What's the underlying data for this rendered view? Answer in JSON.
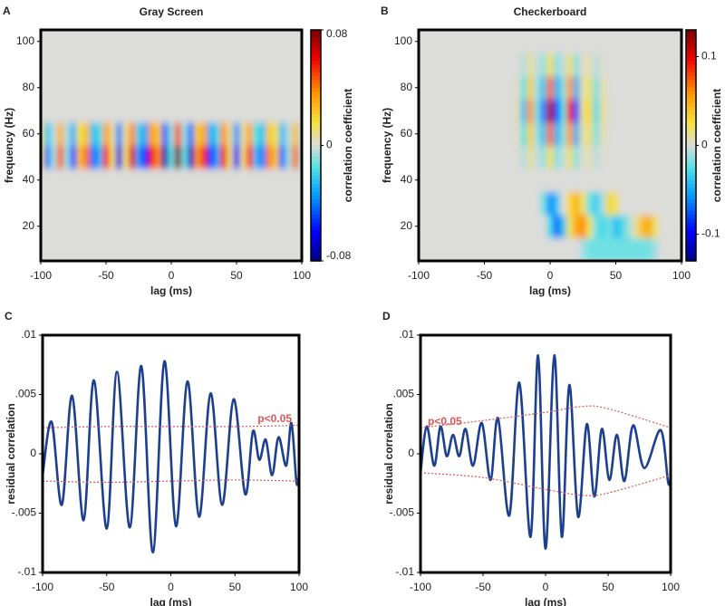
{
  "chart_data": [
    {
      "type": "heatmap",
      "panel_label": "A",
      "title": "Gray Screen",
      "xlabel": "lag (ms)",
      "ylabel": "frequency (Hz)",
      "x": [
        -100,
        -95,
        -90,
        -85,
        -80,
        -75,
        -70,
        -65,
        -60,
        -55,
        -50,
        -45,
        -40,
        -35,
        -30,
        -25,
        -20,
        -15,
        -10,
        -5,
        0,
        5,
        10,
        15,
        20,
        25,
        30,
        35,
        40,
        45,
        50,
        55,
        60,
        65,
        70,
        75,
        80,
        85,
        90,
        95,
        100
      ],
      "y": [
        10,
        20,
        30,
        40,
        50,
        60,
        70,
        80,
        90,
        100
      ],
      "z": [
        [
          0,
          0,
          0,
          0,
          0,
          0,
          0,
          0,
          0,
          0,
          0,
          0,
          0,
          0,
          0,
          0,
          0,
          0,
          0,
          0,
          0,
          0,
          0,
          0,
          0,
          0,
          0,
          0,
          0,
          0,
          0,
          0,
          0,
          0,
          0,
          0,
          0,
          0,
          0,
          0,
          0
        ],
        [
          0,
          0,
          0,
          0,
          0,
          0,
          0,
          0,
          0,
          0,
          0,
          0,
          0,
          0,
          0,
          0,
          0,
          0,
          0,
          0,
          0,
          0,
          0,
          0,
          0,
          0,
          0,
          0,
          0,
          0,
          0,
          0,
          0,
          0,
          0,
          0,
          0,
          0,
          0,
          0,
          0
        ],
        [
          0,
          0,
          0,
          0,
          0,
          0,
          0,
          0,
          0,
          0,
          0,
          0,
          0,
          0,
          0,
          0,
          0,
          0,
          0,
          0,
          0,
          0,
          0,
          0,
          0,
          0,
          0,
          0,
          0,
          0,
          0,
          0,
          0,
          0,
          0,
          0,
          0,
          0,
          0,
          0,
          0
        ],
        [
          0,
          0,
          0,
          0,
          0,
          0,
          0,
          0,
          0,
          0,
          0,
          0,
          0,
          0,
          0,
          0,
          0,
          0,
          0,
          0,
          0,
          0,
          0,
          0,
          0,
          0,
          0,
          0,
          0,
          0,
          0,
          0,
          0,
          0,
          0,
          0,
          0,
          0,
          0,
          0,
          0
        ],
        [
          0.02,
          -0.039,
          -0.007,
          0.046,
          -0.008,
          -0.047,
          0.026,
          0.042,
          -0.043,
          -0.029,
          0.056,
          0.011,
          -0.064,
          0.011,
          0.064,
          -0.035,
          -0.055,
          0.057,
          0.038,
          -0.073,
          -0.014,
          0.078,
          -0.013,
          -0.07,
          0.036,
          0.054,
          -0.052,
          -0.033,
          0.06,
          0.011,
          -0.06,
          0.01,
          0.053,
          -0.027,
          -0.04,
          0.039,
          0.024,
          -0.043,
          -0.007,
          0.042,
          -0.007
        ],
        [
          0.012,
          -0.023,
          -0.004,
          0.028,
          -0.005,
          -0.028,
          0.016,
          0.025,
          -0.026,
          -0.017,
          0.034,
          0.007,
          -0.038,
          0.007,
          0.038,
          -0.021,
          -0.033,
          0.034,
          0.023,
          -0.044,
          -0.008,
          0.047,
          -0.008,
          -0.042,
          0.022,
          0.032,
          -0.031,
          -0.02,
          0.036,
          0.007,
          -0.036,
          0.006,
          0.032,
          -0.016,
          -0.024,
          0.023,
          0.014,
          -0.026,
          -0.004,
          0.025,
          -0.004
        ],
        [
          0,
          0,
          0,
          0,
          0,
          0,
          0,
          0,
          0,
          0,
          0,
          0,
          0,
          0,
          0,
          0,
          0,
          0,
          0,
          0,
          0,
          0,
          0,
          0,
          0,
          0,
          0,
          0,
          0,
          0,
          0,
          0,
          0,
          0,
          0,
          0,
          0,
          0,
          0,
          0,
          0
        ],
        [
          0,
          0,
          0,
          0,
          0,
          0,
          0,
          0,
          0,
          0,
          0,
          0,
          0,
          0,
          0,
          0,
          0,
          0,
          0,
          0,
          0,
          0,
          0,
          0,
          0,
          0,
          0,
          0,
          0,
          0,
          0,
          0,
          0,
          0,
          0,
          0,
          0,
          0,
          0,
          0,
          0
        ],
        [
          0,
          0,
          0,
          0,
          0,
          0,
          0,
          0,
          0,
          0,
          0,
          0,
          0,
          0,
          0,
          0,
          0,
          0,
          0,
          0,
          0,
          0,
          0,
          0,
          0,
          0,
          0,
          0,
          0,
          0,
          0,
          0,
          0,
          0,
          0,
          0,
          0,
          0,
          0,
          0,
          0
        ],
        [
          0,
          0,
          0,
          0,
          0,
          0,
          0,
          0,
          0,
          0,
          0,
          0,
          0,
          0,
          0,
          0,
          0,
          0,
          0,
          0,
          0,
          0,
          0,
          0,
          0,
          0,
          0,
          0,
          0,
          0,
          0,
          0,
          0,
          0,
          0,
          0,
          0,
          0,
          0,
          0,
          0
        ]
      ],
      "xlim": [
        -100,
        100
      ],
      "ylim": [
        5,
        105
      ],
      "xticks": [
        -100,
        -50,
        0,
        50,
        100
      ],
      "yticks": [
        20,
        40,
        60,
        80,
        100
      ],
      "colorbar": {
        "label": "correlation coefficient",
        "lim": [
          -0.08,
          0.08
        ],
        "ticks": [
          0.08,
          0,
          -0.08
        ]
      }
    },
    {
      "type": "heatmap",
      "panel_label": "B",
      "title": "Checkerboard",
      "xlabel": "lag (ms)",
      "ylabel": "frequency (Hz)",
      "x": [
        -100,
        -95,
        -90,
        -85,
        -80,
        -75,
        -70,
        -65,
        -60,
        -55,
        -50,
        -45,
        -40,
        -35,
        -30,
        -25,
        -20,
        -15,
        -10,
        -5,
        0,
        5,
        10,
        15,
        20,
        25,
        30,
        35,
        40,
        45,
        50,
        55,
        60,
        65,
        70,
        75,
        80,
        85,
        90,
        95,
        100
      ],
      "y": [
        10,
        20,
        30,
        40,
        50,
        60,
        70,
        80,
        90,
        100
      ],
      "z": [
        [
          0,
          0,
          0,
          0,
          0,
          0,
          0,
          0,
          0,
          0,
          0,
          0,
          0,
          0,
          0,
          0,
          0,
          0,
          0,
          0,
          0,
          0,
          0,
          0,
          0,
          -0.01,
          -0.02,
          -0.02,
          -0.02,
          -0.02,
          -0.02,
          -0.02,
          -0.02,
          -0.02,
          -0.02,
          -0.02,
          -0.01,
          0,
          0,
          0,
          0
        ],
        [
          0,
          0,
          0,
          0,
          0,
          0,
          0,
          0,
          0,
          0,
          0,
          0,
          0,
          0,
          0,
          0,
          0,
          0,
          0,
          0,
          -0.03,
          -0.07,
          -0.04,
          0.02,
          0.05,
          0.06,
          0.02,
          -0.02,
          -0.03,
          -0.02,
          -0.04,
          -0.03,
          -0.01,
          0.01,
          0.04,
          0.05,
          0.02,
          0,
          0,
          0,
          0
        ],
        [
          0,
          0,
          0,
          0,
          0,
          0,
          0,
          0,
          0,
          0,
          0,
          0,
          0,
          0,
          0,
          0,
          0,
          0,
          0,
          -0.02,
          -0.06,
          -0.04,
          0,
          0.03,
          0.045,
          0.02,
          -0.02,
          -0.035,
          -0.01,
          0.03,
          0.02,
          0,
          0,
          0,
          0,
          0,
          0,
          0,
          0,
          0,
          0
        ],
        [
          0,
          0,
          0,
          0,
          0,
          0,
          0,
          0,
          0,
          0,
          0,
          0,
          0,
          0,
          0,
          0,
          0,
          0,
          0,
          0,
          0,
          0,
          0,
          0,
          0,
          0,
          0,
          0,
          0,
          0,
          0,
          0,
          0,
          0,
          0,
          0,
          0,
          0,
          0,
          0,
          0
        ],
        [
          0,
          0,
          0,
          0,
          0,
          0,
          0,
          0,
          0,
          0,
          0,
          0,
          0,
          0,
          0,
          0.001,
          -0.008,
          0.011,
          -0.004,
          -0.013,
          0.023,
          -0.015,
          -0.005,
          0.018,
          -0.015,
          0.003,
          0.006,
          -0.006,
          0.002,
          0,
          0,
          0,
          0,
          0,
          0,
          0,
          0,
          0,
          0,
          0,
          0
        ],
        [
          0,
          0,
          0,
          0,
          0,
          0,
          0,
          0,
          0,
          0,
          0,
          0,
          0,
          0,
          0,
          0.004,
          -0.024,
          0.034,
          -0.011,
          -0.038,
          0.069,
          -0.046,
          -0.015,
          0.055,
          -0.046,
          0.008,
          0.017,
          -0.017,
          0.007,
          0.001,
          0,
          0,
          0,
          0,
          0,
          0,
          0,
          0,
          0,
          0,
          0
        ],
        [
          0,
          0,
          0,
          0,
          0,
          0,
          0,
          0,
          0,
          0,
          0,
          0,
          0,
          0,
          0,
          0.006,
          -0.04,
          0.057,
          -0.018,
          -0.064,
          0.115,
          -0.076,
          -0.025,
          0.092,
          -0.076,
          0.014,
          0.028,
          -0.029,
          0.011,
          0.002,
          0,
          0,
          0,
          0,
          0,
          0,
          0,
          0,
          0,
          0,
          0
        ],
        [
          0,
          0,
          0,
          0,
          0,
          0,
          0,
          0,
          0,
          0,
          0,
          0,
          0,
          0,
          0,
          0.004,
          -0.024,
          0.034,
          -0.011,
          -0.038,
          0.069,
          -0.046,
          -0.015,
          0.055,
          -0.046,
          0.008,
          0.017,
          -0.017,
          0.007,
          0.001,
          0,
          0,
          0,
          0,
          0,
          0,
          0,
          0,
          0,
          0,
          0
        ],
        [
          0,
          0,
          0,
          0,
          0,
          0,
          0,
          0,
          0,
          0,
          0,
          0,
          0,
          0,
          0,
          0.001,
          -0.008,
          0.011,
          -0.004,
          -0.013,
          0.023,
          -0.015,
          -0.005,
          0.018,
          -0.015,
          0.003,
          0.006,
          -0.006,
          0.002,
          0,
          0,
          0,
          0,
          0,
          0,
          0,
          0,
          0,
          0,
          0,
          0
        ],
        [
          0,
          0,
          0,
          0,
          0,
          0,
          0,
          0,
          0,
          0,
          0,
          0,
          0,
          0,
          0,
          0,
          0,
          0,
          0,
          0,
          0,
          0,
          0,
          0,
          0,
          0,
          0,
          0,
          0,
          0,
          0,
          0,
          0,
          0,
          0,
          0,
          0,
          0,
          0,
          0,
          0
        ]
      ],
      "xlim": [
        -100,
        100
      ],
      "ylim": [
        5,
        105
      ],
      "xticks": [
        -100,
        -50,
        0,
        50,
        100
      ],
      "yticks": [
        20,
        40,
        60,
        80,
        100
      ],
      "colorbar": {
        "label": "correlation coefficient",
        "lim": [
          -0.13,
          0.13
        ],
        "ticks": [
          0.1,
          0,
          -0.1
        ]
      }
    },
    {
      "type": "line",
      "panel_label": "C",
      "xlabel": "lag (ms)",
      "ylabel": "residual correlation",
      "annotation": "p<0.05",
      "xlim": [
        -100,
        100
      ],
      "ylim": [
        -0.01,
        0.01
      ],
      "xticks": [
        -100,
        -50,
        0,
        50,
        100
      ],
      "yticks": [
        {
          "value": 0.01,
          "label": ".01"
        },
        {
          "value": 0.005,
          "label": ".005"
        },
        0,
        {
          "value": -0.005,
          "label": "-.005"
        },
        {
          "value": -0.01,
          "label": "-.01"
        }
      ],
      "series": [
        {
          "color": "#1c3f8e",
          "dashed": false,
          "x": [
            -100,
            -93,
            -85,
            -77,
            -68,
            -60,
            -50,
            -42,
            -32,
            -23,
            -14,
            -5,
            4,
            13,
            22,
            31,
            40,
            49,
            58,
            64,
            69,
            74,
            79,
            84,
            90,
            94,
            98,
            100
          ],
          "values": [
            -0.0018,
            0.0027,
            -0.0043,
            0.0049,
            -0.0056,
            0.0062,
            -0.0063,
            0.0069,
            -0.0062,
            0.0074,
            -0.0083,
            0.0078,
            -0.0061,
            0.0061,
            -0.0053,
            0.0051,
            -0.0043,
            0.0046,
            -0.0034,
            0.0019,
            -0.0005,
            0.0012,
            -0.0018,
            0.0014,
            -0.001,
            0.0026,
            -0.0024,
            -0.0018
          ]
        },
        {
          "color": "#e05555",
          "dashed": true,
          "x": [
            -100,
            -50,
            0,
            50,
            100
          ],
          "values": [
            0.0022,
            0.0023,
            0.0023,
            0.0023,
            0.0024
          ]
        },
        {
          "color": "#e05555",
          "dashed": true,
          "x": [
            -100,
            -50,
            0,
            50,
            100
          ],
          "values": [
            -0.0023,
            -0.0024,
            -0.0023,
            -0.0022,
            -0.0023
          ]
        }
      ]
    },
    {
      "type": "line",
      "panel_label": "D",
      "xlabel": "lag (ms)",
      "ylabel": "residual correlation",
      "annotation": "p<0.05",
      "xlim": [
        -100,
        100
      ],
      "ylim": [
        -0.01,
        0.01
      ],
      "xticks": [
        -100,
        -50,
        0,
        50,
        100
      ],
      "yticks": [
        {
          "value": 0.01,
          "label": ".01"
        },
        {
          "value": 0.005,
          "label": ".005"
        },
        0,
        {
          "value": -0.005,
          "label": "-.005"
        },
        {
          "value": -0.01,
          "label": "-.01"
        }
      ],
      "series": [
        {
          "color": "#1c3f8e",
          "dashed": false,
          "x": [
            -100,
            -95,
            -89,
            -84,
            -79,
            -74,
            -69,
            -64,
            -58,
            -51,
            -44,
            -38,
            -29,
            -21,
            -12,
            -6,
            0,
            7,
            13,
            19,
            26,
            33,
            39,
            45,
            51,
            57,
            63,
            70,
            79,
            92,
            98,
            100
          ],
          "values": [
            -0.0016,
            0.0023,
            -0.001,
            0.0023,
            -0.0002,
            0.0016,
            -0.0002,
            0.0021,
            -0.001,
            0.0026,
            -0.0022,
            0.003,
            -0.0052,
            0.006,
            -0.007,
            0.0083,
            -0.008,
            0.0083,
            -0.007,
            0.0058,
            -0.0053,
            0.0025,
            -0.0036,
            0.0021,
            -0.0022,
            0.0016,
            -0.0023,
            0.0024,
            -0.0012,
            0.002,
            -0.0024,
            -0.002
          ]
        },
        {
          "color": "#e05555",
          "dashed": true,
          "x": [
            -100,
            -50,
            0,
            30,
            50,
            100
          ],
          "values": [
            0.0022,
            0.0028,
            0.0035,
            0.004,
            0.0038,
            0.0022
          ]
        },
        {
          "color": "#e05555",
          "dashed": true,
          "x": [
            -100,
            -50,
            0,
            30,
            50,
            100
          ],
          "values": [
            -0.0016,
            -0.002,
            -0.003,
            -0.0035,
            -0.0033,
            -0.0018
          ]
        }
      ]
    }
  ]
}
